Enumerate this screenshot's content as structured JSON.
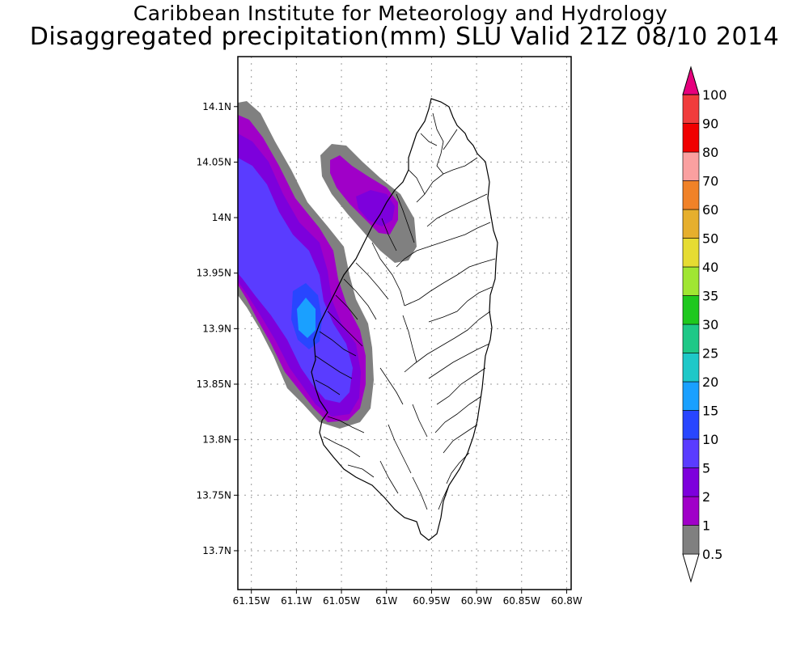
{
  "header": {
    "title": "Caribbean Institute for Meteorology and Hydrology",
    "subtitle": "Disaggregated precipitation(mm) SLU Valid 21Z 08/10 2014"
  },
  "map": {
    "lon_range": [
      -61.165,
      -60.795
    ],
    "lat_range": [
      13.665,
      14.145
    ],
    "x_ticks": [
      {
        "value": -61.15,
        "label": "61.15W"
      },
      {
        "value": -61.1,
        "label": "61.1W"
      },
      {
        "value": -61.05,
        "label": "61.05W"
      },
      {
        "value": -61.0,
        "label": "61W"
      },
      {
        "value": -60.95,
        "label": "60.95W"
      },
      {
        "value": -60.9,
        "label": "60.9W"
      },
      {
        "value": -60.85,
        "label": "60.85W"
      },
      {
        "value": -60.8,
        "label": "60.8W"
      }
    ],
    "y_ticks": [
      {
        "value": 14.1,
        "label": "14.1N"
      },
      {
        "value": 14.05,
        "label": "14.05N"
      },
      {
        "value": 14.0,
        "label": "14N"
      },
      {
        "value": 13.95,
        "label": "13.95N"
      },
      {
        "value": 13.9,
        "label": "13.9N"
      },
      {
        "value": 13.85,
        "label": "13.85N"
      },
      {
        "value": 13.8,
        "label": "13.8N"
      },
      {
        "value": 13.75,
        "label": "13.75N"
      },
      {
        "value": 13.7,
        "label": "13.7N"
      }
    ],
    "grid": "dotted"
  },
  "legend": {
    "bottom_label": "0.5",
    "levels": [
      {
        "label": "1",
        "color": "#808080"
      },
      {
        "label": "2",
        "color": "#a000c8"
      },
      {
        "label": "5",
        "color": "#7d00dc"
      },
      {
        "label": "10",
        "color": "#5a3cff"
      },
      {
        "label": "15",
        "color": "#2846ff"
      },
      {
        "label": "20",
        "color": "#1aa0ff"
      },
      {
        "label": "25",
        "color": "#1ec8c8"
      },
      {
        "label": "30",
        "color": "#1ec887"
      },
      {
        "label": "35",
        "color": "#1ec81e"
      },
      {
        "label": "40",
        "color": "#a0e632"
      },
      {
        "label": "50",
        "color": "#e6dc32"
      },
      {
        "label": "60",
        "color": "#e6af2d"
      },
      {
        "label": "70",
        "color": "#f08228"
      },
      {
        "label": "80",
        "color": "#faa0a0"
      },
      {
        "label": "90",
        "color": "#f00000"
      },
      {
        "label": "100",
        "color": "#f03c3c"
      }
    ],
    "top_arrow_color": "#e6007d",
    "bottom_arrow_color": "#ffffff"
  }
}
